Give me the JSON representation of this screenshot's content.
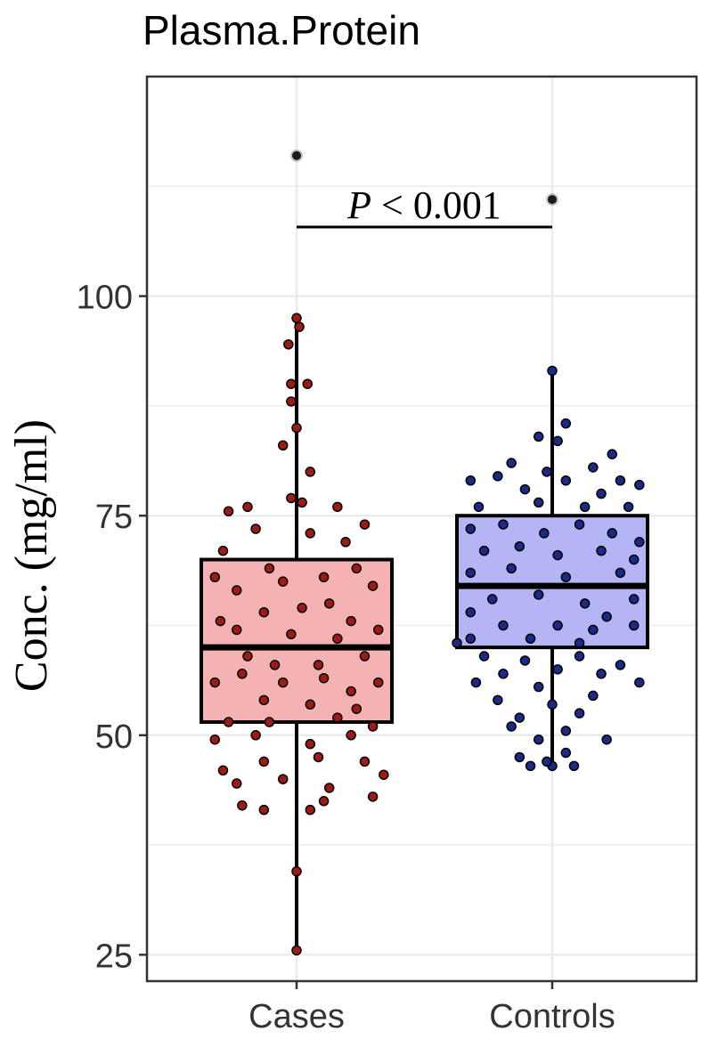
{
  "chart_data": {
    "type": "box",
    "title": "Plasma.Protein",
    "xlabel": "",
    "ylabel": "Conc. (mg/ml)",
    "ylim": [
      22,
      125
    ],
    "y_ticks": [
      25,
      50,
      75,
      100
    ],
    "y_tick_labels": [
      "25",
      "50",
      "75",
      "100"
    ],
    "grid": true,
    "annotation": {
      "p_italic": "P",
      "p_rest": " < 0.001"
    },
    "categories": [
      "Cases",
      "Controls"
    ],
    "series": [
      {
        "category": "Cases",
        "fill": "#f4b2b2",
        "point_color": "#9e1b14",
        "q1": 51.5,
        "median": 60,
        "q3": 70,
        "whisker_low": 25.5,
        "whisker_high": 97.5,
        "outliers": [
          116
        ],
        "points": [
          [
            -0.25,
            75.5
          ],
          [
            -0.18,
            76
          ],
          [
            -0.27,
            71
          ],
          [
            -0.15,
            73.5
          ],
          [
            0.05,
            73
          ],
          [
            0.15,
            76
          ],
          [
            0.25,
            74
          ],
          [
            0.02,
            76.5
          ],
          [
            0.18,
            72
          ],
          [
            -0.3,
            68
          ],
          [
            -0.22,
            66.5
          ],
          [
            -0.1,
            69
          ],
          [
            0.1,
            68
          ],
          [
            0.22,
            69
          ],
          [
            0.28,
            67
          ],
          [
            -0.05,
            67.5
          ],
          [
            0.12,
            65
          ],
          [
            -0.28,
            63
          ],
          [
            -0.12,
            64
          ],
          [
            0.02,
            64.5
          ],
          [
            0.2,
            63
          ],
          [
            -0.22,
            62
          ],
          [
            0.3,
            62
          ],
          [
            -0.02,
            61.5
          ],
          [
            0.15,
            61
          ],
          [
            -0.18,
            59
          ],
          [
            -0.08,
            58
          ],
          [
            0.08,
            58
          ],
          [
            0.25,
            59
          ],
          [
            -0.3,
            56
          ],
          [
            -0.2,
            57
          ],
          [
            -0.05,
            56
          ],
          [
            0.1,
            56.5
          ],
          [
            0.2,
            55
          ],
          [
            0.3,
            56
          ],
          [
            -0.12,
            54
          ],
          [
            0.05,
            53.5
          ],
          [
            0.22,
            53
          ],
          [
            -0.25,
            51.5
          ],
          [
            -0.1,
            51.5
          ],
          [
            0.15,
            52
          ],
          [
            0.28,
            51
          ],
          [
            -0.3,
            49.5
          ],
          [
            -0.15,
            50
          ],
          [
            0.05,
            49
          ],
          [
            0.2,
            50
          ],
          [
            -0.27,
            46
          ],
          [
            -0.12,
            47
          ],
          [
            0.08,
            47.5
          ],
          [
            0.25,
            47
          ],
          [
            0.32,
            45.5
          ],
          [
            -0.22,
            44.5
          ],
          [
            -0.05,
            45
          ],
          [
            0.12,
            44
          ],
          [
            0.28,
            43
          ],
          [
            -0.2,
            42
          ],
          [
            0.1,
            42.5
          ],
          [
            -0.12,
            41.5
          ],
          [
            0.05,
            41.5
          ],
          [
            -0.03,
            94.5
          ],
          [
            0.01,
            96.5
          ],
          [
            -0.02,
            90
          ],
          [
            0.04,
            90
          ],
          [
            -0.02,
            88
          ],
          [
            0.0,
            85
          ],
          [
            -0.05,
            83
          ],
          [
            0.05,
            80
          ],
          [
            -0.02,
            77
          ],
          [
            0.0,
            34.5
          ]
        ]
      },
      {
        "category": "Controls",
        "fill": "#b5b5f6",
        "point_color": "#1a2a86",
        "q1": 60,
        "median": 67,
        "q3": 75,
        "whisker_low": 46.5,
        "whisker_high": 91.5,
        "outliers": [
          111
        ],
        "points": [
          [
            -0.05,
            84
          ],
          [
            0.05,
            85.5
          ],
          [
            0.02,
            83.5
          ],
          [
            -0.15,
            81
          ],
          [
            0.15,
            80.5
          ],
          [
            0.22,
            82
          ],
          [
            -0.02,
            80
          ],
          [
            -0.3,
            79
          ],
          [
            -0.2,
            79.5
          ],
          [
            0.05,
            79
          ],
          [
            0.25,
            79
          ],
          [
            0.32,
            78.5
          ],
          [
            -0.1,
            78
          ],
          [
            0.18,
            77.5
          ],
          [
            -0.27,
            76
          ],
          [
            -0.05,
            76.5
          ],
          [
            0.12,
            76
          ],
          [
            0.28,
            76
          ],
          [
            -0.3,
            73.5
          ],
          [
            -0.18,
            74
          ],
          [
            -0.03,
            73
          ],
          [
            0.1,
            74
          ],
          [
            0.22,
            73
          ],
          [
            0.32,
            72
          ],
          [
            -0.25,
            71
          ],
          [
            -0.12,
            71.5
          ],
          [
            0.02,
            70.5
          ],
          [
            0.18,
            71
          ],
          [
            0.3,
            70
          ],
          [
            -0.3,
            68.5
          ],
          [
            -0.15,
            69
          ],
          [
            0.05,
            68
          ],
          [
            0.25,
            68.5
          ],
          [
            -0.22,
            65.5
          ],
          [
            -0.05,
            66
          ],
          [
            0.12,
            65
          ],
          [
            0.3,
            65.5
          ],
          [
            -0.3,
            64
          ],
          [
            0.2,
            63.5
          ],
          [
            -0.18,
            62.5
          ],
          [
            0.02,
            62.5
          ],
          [
            0.15,
            62
          ],
          [
            0.3,
            62.5
          ],
          [
            -0.3,
            61
          ],
          [
            -0.08,
            61
          ],
          [
            0.1,
            60.5
          ],
          [
            -0.35,
            60.5
          ],
          [
            -0.25,
            59
          ],
          [
            -0.1,
            58.5
          ],
          [
            0.1,
            59
          ],
          [
            0.25,
            58
          ],
          [
            -0.18,
            57
          ],
          [
            0.02,
            57.5
          ],
          [
            0.18,
            57
          ],
          [
            -0.28,
            56
          ],
          [
            -0.05,
            55.5
          ],
          [
            0.32,
            56
          ],
          [
            -0.2,
            54
          ],
          [
            0.0,
            53.5
          ],
          [
            0.15,
            54.5
          ],
          [
            -0.12,
            52
          ],
          [
            0.1,
            52.5
          ],
          [
            -0.15,
            51
          ],
          [
            0.05,
            50.5
          ],
          [
            -0.05,
            49.5
          ],
          [
            0.2,
            49.5
          ],
          [
            -0.12,
            47.5
          ],
          [
            0.05,
            48
          ],
          [
            -0.02,
            47
          ],
          [
            0.08,
            46.5
          ],
          [
            -0.08,
            46.5
          ]
        ]
      }
    ]
  }
}
